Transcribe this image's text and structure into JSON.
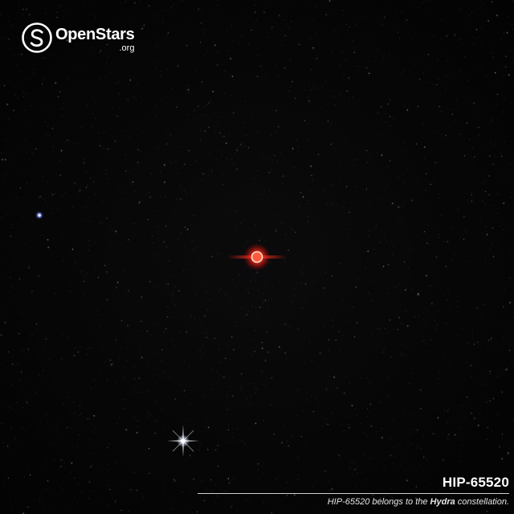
{
  "brand": {
    "name": "OpenStars",
    "tld": ".org",
    "logo_icon": "openstars-logo-icon"
  },
  "target": {
    "name": "HIP-65520",
    "color": "#ff3a2a"
  },
  "caption": {
    "title": "HIP-65520",
    "desc_prefix": "HIP-65520 belongs to the ",
    "constellation": "Hydra",
    "desc_suffix": " constellation."
  },
  "colors": {
    "sky": "#050505",
    "target_star": "#ff3a2a",
    "bright_white_star": "#ffffff",
    "blue_star": "#8fa8ff"
  }
}
